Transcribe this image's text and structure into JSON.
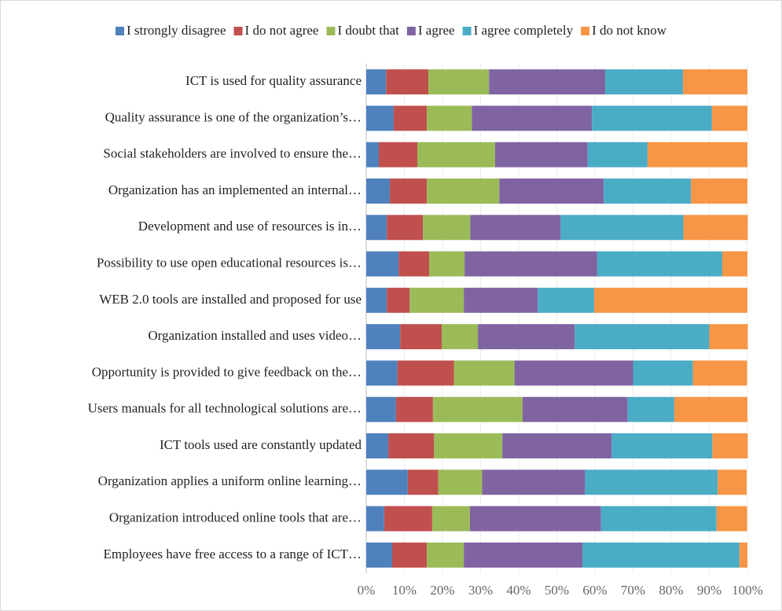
{
  "chart_data": {
    "type": "stacked-barh",
    "categories": [
      "ICT is used for quality assurance",
      "Quality assurance is one of the organization’s…",
      "Social stakeholders are involved to ensure the…",
      "Organization has an implemented an internal…",
      "Development and use of resources is in…",
      "Possibility to use open educational resources is…",
      "WEB 2.0 tools are installed and proposed for use",
      "Organization installed and uses video…",
      "Opportunity is provided to give feedback on the…",
      "Users manuals for all technological solutions are…",
      "ICT tools used are constantly updated",
      "Organization applies a uniform online learning…",
      "Organization introduced online tools that are…",
      "Employees have free access to a range of ICT…"
    ],
    "series": [
      {
        "name": "I strongly disagree",
        "color": "#4f81bd",
        "values": [
          5.2,
          7.2,
          3.3,
          6.2,
          5.4,
          8.5,
          5.4,
          8.9,
          8.2,
          7.8,
          5.8,
          10.9,
          4.7,
          6.8
        ]
      },
      {
        "name": "I do not agree",
        "color": "#c0504d",
        "values": [
          11.1,
          8.7,
          10.1,
          9.7,
          9.5,
          8.0,
          6.0,
          10.9,
          14.8,
          9.7,
          12.0,
          8.0,
          12.6,
          9.1
        ]
      },
      {
        "name": "I doubt that",
        "color": "#9bbb59",
        "values": [
          15.9,
          11.8,
          20.4,
          19.0,
          12.4,
          9.3,
          14.2,
          9.5,
          15.9,
          23.5,
          17.9,
          11.5,
          9.9,
          9.7
        ]
      },
      {
        "name": "I agree",
        "color": "#8064a2",
        "values": [
          30.5,
          31.5,
          24.3,
          27.4,
          23.7,
          34.8,
          19.4,
          25.4,
          31.1,
          27.6,
          28.7,
          27.0,
          34.4,
          31.1
        ]
      },
      {
        "name": "I agree completely",
        "color": "#4bacc6",
        "values": [
          20.4,
          31.5,
          15.7,
          22.9,
          32.2,
          32.8,
          14.8,
          35.3,
          15.7,
          12.2,
          26.4,
          34.8,
          30.3,
          41.2
        ]
      },
      {
        "name": "I do not know",
        "color": "#f79646",
        "values": [
          16.9,
          9.3,
          26.2,
          14.8,
          16.9,
          6.6,
          40.2,
          10.1,
          14.2,
          19.2,
          9.3,
          7.6,
          8.0,
          2.1
        ]
      }
    ],
    "xlim": [
      0,
      100
    ],
    "xticks": [
      {
        "value": 0,
        "label": "0%"
      },
      {
        "value": 10,
        "label": "10%"
      },
      {
        "value": 20,
        "label": "20%"
      },
      {
        "value": 30,
        "label": "30%"
      },
      {
        "value": 40,
        "label": "40%"
      },
      {
        "value": 50,
        "label": "50%"
      },
      {
        "value": 60,
        "label": "60%"
      },
      {
        "value": 70,
        "label": "70%"
      },
      {
        "value": 80,
        "label": "80%"
      },
      {
        "value": 90,
        "label": "90%"
      },
      {
        "value": 100,
        "label": "100%"
      }
    ],
    "legend": "top"
  }
}
